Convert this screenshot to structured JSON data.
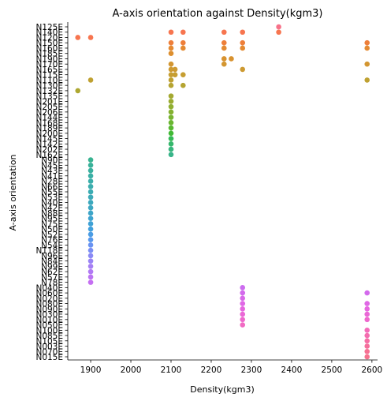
{
  "chart_data": {
    "type": "scatter",
    "title": "A-axis orientation against Density(kgm3)",
    "xlabel": "Density(kgm3)",
    "ylabel": "A-axis orientation",
    "xlim": [
      1843,
      2614
    ],
    "xticks": [
      1900,
      2000,
      2100,
      2200,
      2300,
      2400,
      2500,
      2600
    ],
    "grid": false,
    "legend": "none",
    "categories": [
      "N125E",
      "N140E",
      "N120E",
      "N150E",
      "N160E",
      "N185E",
      "N190E",
      "N170E",
      "N165E",
      "N115E",
      "N110E",
      "N130E",
      "N132E",
      "N135E",
      "N201E",
      "N205E",
      "N206E",
      "N144E",
      "N168E",
      "N189E",
      "N200E",
      "N145E",
      "N142E",
      "N202E",
      "N162E",
      "N90E",
      "N45E",
      "N43E",
      "N41E",
      "N28E",
      "N66E",
      "N55E",
      "N53E",
      "N40E",
      "N42E",
      "N88E",
      "N95E",
      "N75E",
      "N50E",
      "N52E",
      "N76E",
      "N54E",
      "N118E",
      "N96E",
      "N84E",
      "N99E",
      "N62E",
      "N57E",
      "N78E",
      "N040E",
      "N060E",
      "N020E",
      "N080E",
      "N090E",
      "N030E",
      "N010E",
      "N050E",
      "N100E",
      "N085E",
      "N105E",
      "N003E",
      "N070E",
      "N015E"
    ],
    "colors": [
      "#f77189",
      "#f7754f",
      "#f7754f",
      "#ee7f3a",
      "#e48a32",
      "#dd8f2f",
      "#d8922f",
      "#d39631",
      "#cd9a31",
      "#c69e31",
      "#bfa131",
      "#b5a431",
      "#ada731",
      "#a4a931",
      "#9aac31",
      "#90af31",
      "#85b131",
      "#78b431",
      "#6ab631",
      "#58b832",
      "#41b935",
      "#34b956",
      "#36b76c",
      "#37b57c",
      "#38b489",
      "#38b391",
      "#39b199",
      "#39b09f",
      "#3aafa5",
      "#3aaeaa",
      "#3badae",
      "#3bacb3",
      "#3caab8",
      "#3ca8bd",
      "#3da7c2",
      "#3ea5c8",
      "#3ea3cf",
      "#3fa1d5",
      "#419fdc",
      "#4a9ce4",
      "#5898ec",
      "#6993f2",
      "#7b8ef4",
      "#8a89f5",
      "#9a84f5",
      "#a67ff4",
      "#b17af4",
      "#bb74f3",
      "#c56ff2",
      "#cc6cef",
      "#d36aec",
      "#d969e9",
      "#df68e5",
      "#e567df",
      "#ea68d6",
      "#ee69cd",
      "#f16bc3",
      "#f36cb9",
      "#f46daf",
      "#f56ea5",
      "#f56f9c",
      "#f67093",
      "#f6718d"
    ],
    "points": [
      {
        "category": "N125E",
        "x": 2368
      },
      {
        "category": "N140E",
        "x": 2100
      },
      {
        "category": "N140E",
        "x": 2130
      },
      {
        "category": "N140E",
        "x": 2232
      },
      {
        "category": "N140E",
        "x": 2278
      },
      {
        "category": "N140E",
        "x": 2368
      },
      {
        "category": "N120E",
        "x": 1868
      },
      {
        "category": "N120E",
        "x": 1900
      },
      {
        "category": "N150E",
        "x": 2100
      },
      {
        "category": "N150E",
        "x": 2130
      },
      {
        "category": "N150E",
        "x": 2232
      },
      {
        "category": "N150E",
        "x": 2278
      },
      {
        "category": "N150E",
        "x": 2588
      },
      {
        "category": "N160E",
        "x": 2100
      },
      {
        "category": "N160E",
        "x": 2130
      },
      {
        "category": "N160E",
        "x": 2232
      },
      {
        "category": "N160E",
        "x": 2278
      },
      {
        "category": "N160E",
        "x": 2588
      },
      {
        "category": "N185E",
        "x": 2100
      },
      {
        "category": "N190E",
        "x": 2232
      },
      {
        "category": "N190E",
        "x": 2250
      },
      {
        "category": "N170E",
        "x": 2100
      },
      {
        "category": "N170E",
        "x": 2232
      },
      {
        "category": "N170E",
        "x": 2588
      },
      {
        "category": "N165E",
        "x": 2100
      },
      {
        "category": "N165E",
        "x": 2110
      },
      {
        "category": "N165E",
        "x": 2278
      },
      {
        "category": "N115E",
        "x": 2100
      },
      {
        "category": "N115E",
        "x": 2110
      },
      {
        "category": "N115E",
        "x": 2130
      },
      {
        "category": "N110E",
        "x": 1900
      },
      {
        "category": "N110E",
        "x": 2100
      },
      {
        "category": "N110E",
        "x": 2588
      },
      {
        "category": "N130E",
        "x": 2100
      },
      {
        "category": "N130E",
        "x": 2130
      },
      {
        "category": "N132E",
        "x": 1868
      },
      {
        "category": "N135E",
        "x": 2100
      },
      {
        "category": "N201E",
        "x": 2100
      },
      {
        "category": "N205E",
        "x": 2100
      },
      {
        "category": "N206E",
        "x": 2100
      },
      {
        "category": "N144E",
        "x": 2100
      },
      {
        "category": "N168E",
        "x": 2100
      },
      {
        "category": "N189E",
        "x": 2100
      },
      {
        "category": "N200E",
        "x": 2100
      },
      {
        "category": "N145E",
        "x": 2100
      },
      {
        "category": "N142E",
        "x": 2100
      },
      {
        "category": "N202E",
        "x": 2100
      },
      {
        "category": "N162E",
        "x": 2100
      },
      {
        "category": "N90E",
        "x": 1900
      },
      {
        "category": "N45E",
        "x": 1900
      },
      {
        "category": "N43E",
        "x": 1900
      },
      {
        "category": "N41E",
        "x": 1900
      },
      {
        "category": "N28E",
        "x": 1900
      },
      {
        "category": "N66E",
        "x": 1900
      },
      {
        "category": "N55E",
        "x": 1900
      },
      {
        "category": "N53E",
        "x": 1900
      },
      {
        "category": "N40E",
        "x": 1900
      },
      {
        "category": "N42E",
        "x": 1900
      },
      {
        "category": "N88E",
        "x": 1900
      },
      {
        "category": "N95E",
        "x": 1900
      },
      {
        "category": "N75E",
        "x": 1900
      },
      {
        "category": "N50E",
        "x": 1900
      },
      {
        "category": "N52E",
        "x": 1900
      },
      {
        "category": "N76E",
        "x": 1900
      },
      {
        "category": "N54E",
        "x": 1900
      },
      {
        "category": "N118E",
        "x": 1900
      },
      {
        "category": "N96E",
        "x": 1900
      },
      {
        "category": "N84E",
        "x": 1900
      },
      {
        "category": "N99E",
        "x": 1900
      },
      {
        "category": "N62E",
        "x": 1900
      },
      {
        "category": "N57E",
        "x": 1900
      },
      {
        "category": "N78E",
        "x": 1900
      },
      {
        "category": "N040E",
        "x": 2278
      },
      {
        "category": "N060E",
        "x": 2278
      },
      {
        "category": "N060E",
        "x": 2588
      },
      {
        "category": "N020E",
        "x": 2278
      },
      {
        "category": "N080E",
        "x": 2278
      },
      {
        "category": "N080E",
        "x": 2588
      },
      {
        "category": "N090E",
        "x": 2278
      },
      {
        "category": "N090E",
        "x": 2588
      },
      {
        "category": "N030E",
        "x": 2278
      },
      {
        "category": "N030E",
        "x": 2588
      },
      {
        "category": "N010E",
        "x": 2278
      },
      {
        "category": "N010E",
        "x": 2588
      },
      {
        "category": "N050E",
        "x": 2278
      },
      {
        "category": "N100E",
        "x": 2588
      },
      {
        "category": "N085E",
        "x": 2588
      },
      {
        "category": "N105E",
        "x": 2588
      },
      {
        "category": "N003E",
        "x": 2588
      },
      {
        "category": "N070E",
        "x": 2588
      },
      {
        "category": "N015E",
        "x": 2588
      }
    ]
  }
}
